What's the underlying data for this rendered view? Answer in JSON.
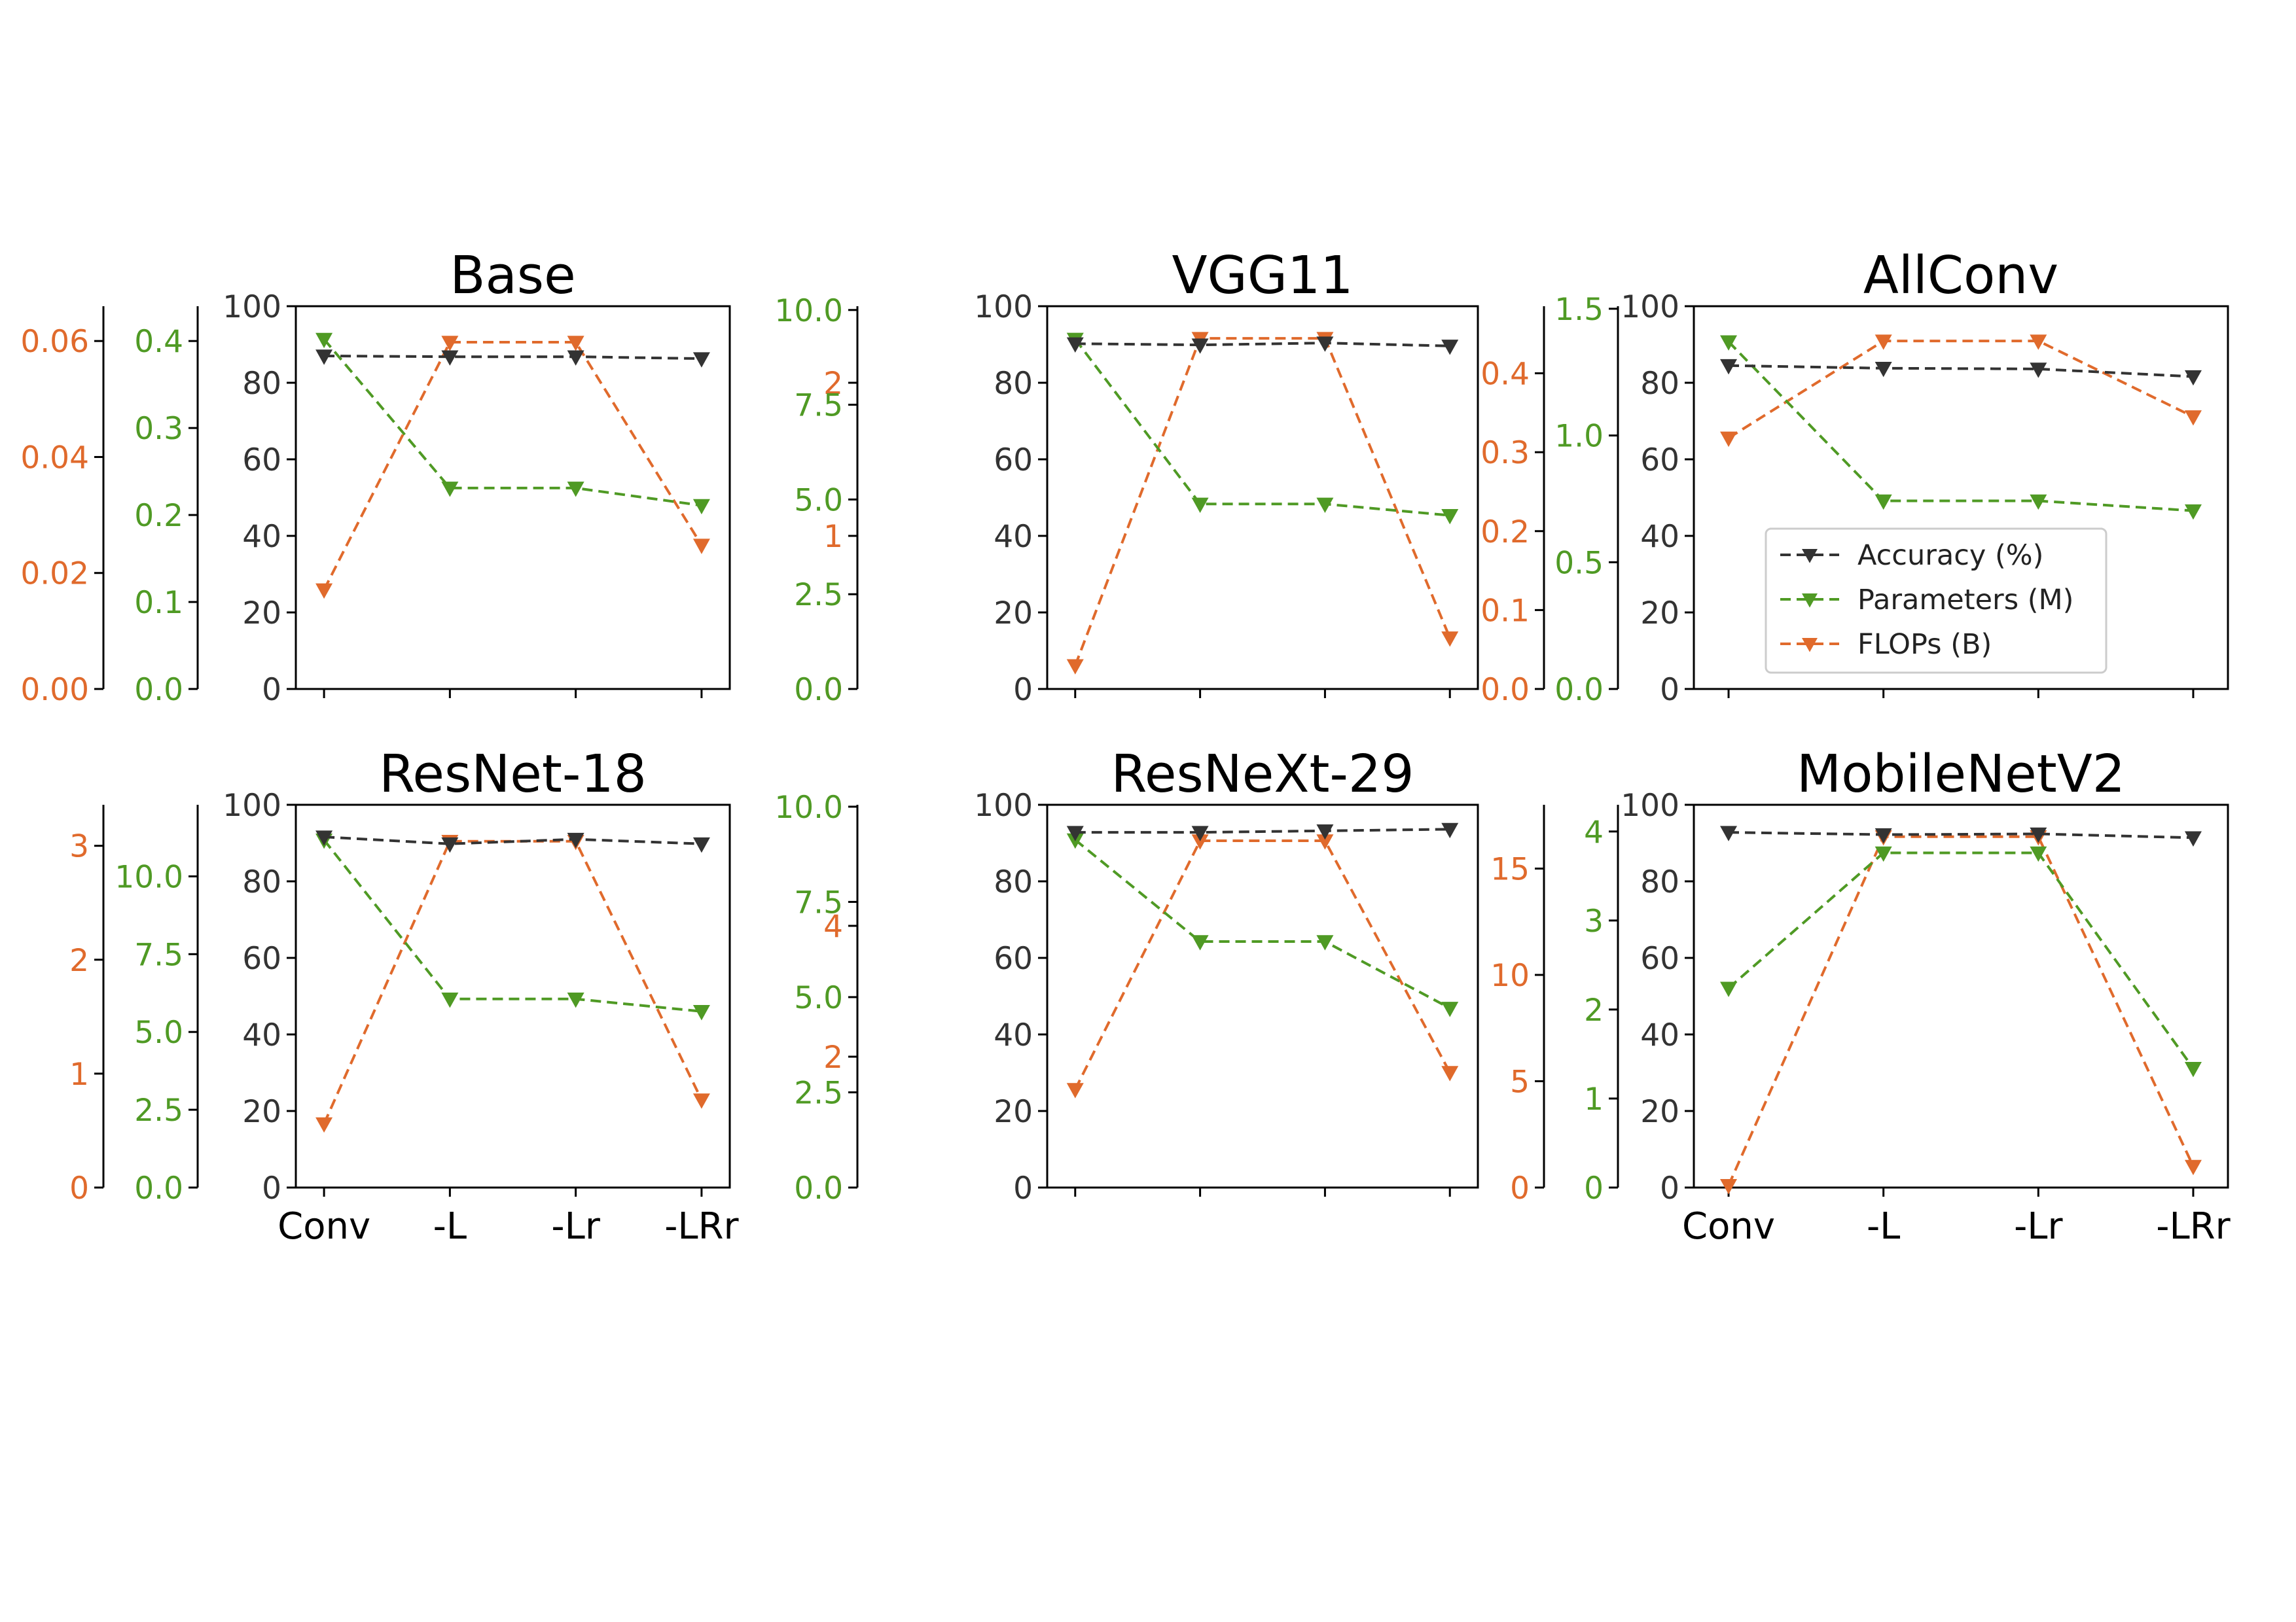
{
  "colors": {
    "accuracy": "#333333",
    "parameters": "#4f9a24",
    "flops": "#e06a2c",
    "axis": "#000000",
    "background": "#ffffff"
  },
  "legend": {
    "items": [
      {
        "label": "Accuracy (%)",
        "series": "accuracy"
      },
      {
        "label": "Parameters (M)",
        "series": "parameters"
      },
      {
        "label": "FLOPs (B)",
        "series": "flops"
      }
    ]
  },
  "chart_data": [
    {
      "type": "line",
      "title": "Base",
      "categories": [
        "Conv",
        "-L",
        "-Lr",
        "-LRr"
      ],
      "show_category_labels": false,
      "marker": "triangle-down",
      "line_style": "dashed",
      "legend": false,
      "series": [
        {
          "key": "accuracy",
          "name": "Accuracy (%)",
          "values": [
            87.0,
            86.8,
            86.8,
            86.3
          ],
          "ylim": [
            0,
            100
          ],
          "ticks": [
            0,
            20,
            40,
            60,
            80,
            100
          ]
        },
        {
          "key": "parameters",
          "name": "Parameters (M)",
          "values": [
            0.402,
            0.231,
            0.231,
            0.211
          ],
          "ylim": [
            0,
            0.44
          ],
          "ticks": [
            0.0,
            0.1,
            0.2,
            0.3,
            0.4
          ],
          "tick_format": "0.0"
        },
        {
          "key": "flops",
          "name": "FLOPs (B)",
          "values": [
            0.0171,
            0.0598,
            0.0598,
            0.0248
          ],
          "ylim": [
            0,
            0.066
          ],
          "ticks": [
            0.0,
            0.02,
            0.04,
            0.06
          ],
          "tick_format": "0.00"
        }
      ]
    },
    {
      "type": "line",
      "title": "VGG11",
      "categories": [
        "Conv",
        "-L",
        "-Lr",
        "-LRr"
      ],
      "show_category_labels": false,
      "marker": "triangle-down",
      "line_style": "dashed",
      "legend": false,
      "series": [
        {
          "key": "accuracy",
          "name": "Accuracy (%)",
          "values": [
            90.2,
            89.9,
            90.4,
            89.6
          ],
          "ylim": [
            0,
            100
          ],
          "ticks": [
            0,
            20,
            40,
            60,
            80,
            100
          ]
        },
        {
          "key": "parameters",
          "name": "Parameters (M)",
          "values": [
            9.23,
            4.88,
            4.88,
            4.58
          ],
          "ylim": [
            0,
            10.1
          ],
          "ticks": [
            0.0,
            2.5,
            5.0,
            7.5,
            10.0
          ],
          "tick_format": "0.0"
        },
        {
          "key": "flops",
          "name": "FLOPs (B)",
          "values": [
            0.153,
            2.29,
            2.29,
            0.334
          ],
          "ylim": [
            0,
            2.5
          ],
          "ticks": [
            0,
            1,
            2
          ],
          "tick_format": "0"
        }
      ]
    },
    {
      "type": "line",
      "title": "AllConv",
      "categories": [
        "Conv",
        "-L",
        "-Lr",
        "-LRr"
      ],
      "show_category_labels": false,
      "marker": "triangle-down",
      "line_style": "dashed",
      "legend": true,
      "legend_position": "lower-left",
      "series": [
        {
          "key": "accuracy",
          "name": "Accuracy (%)",
          "values": [
            84.5,
            83.8,
            83.6,
            81.6
          ],
          "ylim": [
            0,
            100
          ],
          "ticks": [
            0,
            20,
            40,
            60,
            80,
            100
          ]
        },
        {
          "key": "parameters",
          "name": "Parameters (M)",
          "values": [
            1.37,
            0.742,
            0.742,
            0.703
          ],
          "ylim": [
            0,
            1.51
          ],
          "ticks": [
            0.0,
            0.5,
            1.0,
            1.5
          ],
          "tick_format": "0.0"
        },
        {
          "key": "flops",
          "name": "FLOPs (B)",
          "values": [
            0.318,
            0.441,
            0.441,
            0.345
          ],
          "ylim": [
            0,
            0.485
          ],
          "ticks": [
            0.0,
            0.1,
            0.2,
            0.3,
            0.4
          ],
          "tick_format": "0.0"
        }
      ]
    },
    {
      "type": "line",
      "title": "ResNet-18",
      "categories": [
        "Conv",
        "-L",
        "-Lr",
        "-LRr"
      ],
      "show_category_labels": true,
      "marker": "triangle-down",
      "line_style": "dashed",
      "legend": false,
      "series": [
        {
          "key": "accuracy",
          "name": "Accuracy (%)",
          "values": [
            91.6,
            89.8,
            91.0,
            89.8
          ],
          "ylim": [
            0,
            100
          ],
          "ticks": [
            0,
            20,
            40,
            60,
            80,
            100
          ]
        },
        {
          "key": "parameters",
          "name": "Parameters (M)",
          "values": [
            11.17,
            6.06,
            6.06,
            5.66
          ],
          "ylim": [
            0,
            12.3
          ],
          "ticks": [
            0.0,
            2.5,
            5.0,
            7.5,
            10.0
          ],
          "tick_format": "0.0"
        },
        {
          "key": "flops",
          "name": "FLOPs (B)",
          "values": [
            0.56,
            3.04,
            3.04,
            0.77
          ],
          "ylim": [
            0,
            3.36
          ],
          "ticks": [
            0,
            1,
            2,
            3
          ],
          "tick_format": "0"
        }
      ]
    },
    {
      "type": "line",
      "title": "ResNeXt-29",
      "categories": [
        "Conv",
        "-L",
        "-Lr",
        "-LRr"
      ],
      "show_category_labels": false,
      "marker": "triangle-down",
      "line_style": "dashed",
      "legend": false,
      "series": [
        {
          "key": "accuracy",
          "name": "Accuracy (%)",
          "values": [
            92.8,
            92.8,
            93.2,
            93.6
          ],
          "ylim": [
            0,
            100
          ],
          "ticks": [
            0,
            20,
            40,
            60,
            80,
            100
          ]
        },
        {
          "key": "parameters",
          "name": "Parameters (M)",
          "values": [
            9.13,
            6.46,
            6.46,
            4.71
          ],
          "ylim": [
            0,
            10.05
          ],
          "ticks": [
            0.0,
            2.5,
            5.0,
            7.5,
            10.0
          ],
          "tick_format": "0.0"
        },
        {
          "key": "flops",
          "name": "FLOPs (B)",
          "values": [
            1.5,
            5.3,
            5.3,
            1.76
          ],
          "ylim": [
            0,
            5.85
          ],
          "ticks": [
            0,
            2,
            4
          ],
          "tick_format": "0"
        }
      ]
    },
    {
      "type": "line",
      "title": "MobileNetV2",
      "categories": [
        "Conv",
        "-L",
        "-Lr",
        "-LRr"
      ],
      "show_category_labels": true,
      "marker": "triangle-down",
      "line_style": "dashed",
      "legend": false,
      "series": [
        {
          "key": "accuracy",
          "name": "Accuracy (%)",
          "values": [
            92.8,
            92.2,
            92.4,
            91.4
          ],
          "ylim": [
            0,
            100
          ],
          "ticks": [
            0,
            20,
            40,
            60,
            80,
            100
          ]
        },
        {
          "key": "parameters",
          "name": "Parameters (M)",
          "values": [
            2.24,
            3.76,
            3.76,
            1.34
          ],
          "ylim": [
            0,
            4.3
          ],
          "ticks": [
            0,
            1,
            2,
            3,
            4
          ],
          "tick_format": "0"
        },
        {
          "key": "flops",
          "name": "FLOPs (B)",
          "values": [
            0.1,
            16.5,
            16.5,
            1.0
          ],
          "ylim": [
            0,
            18.0
          ],
          "ticks": [
            0,
            5,
            10,
            15
          ],
          "tick_format": "0"
        }
      ]
    }
  ]
}
